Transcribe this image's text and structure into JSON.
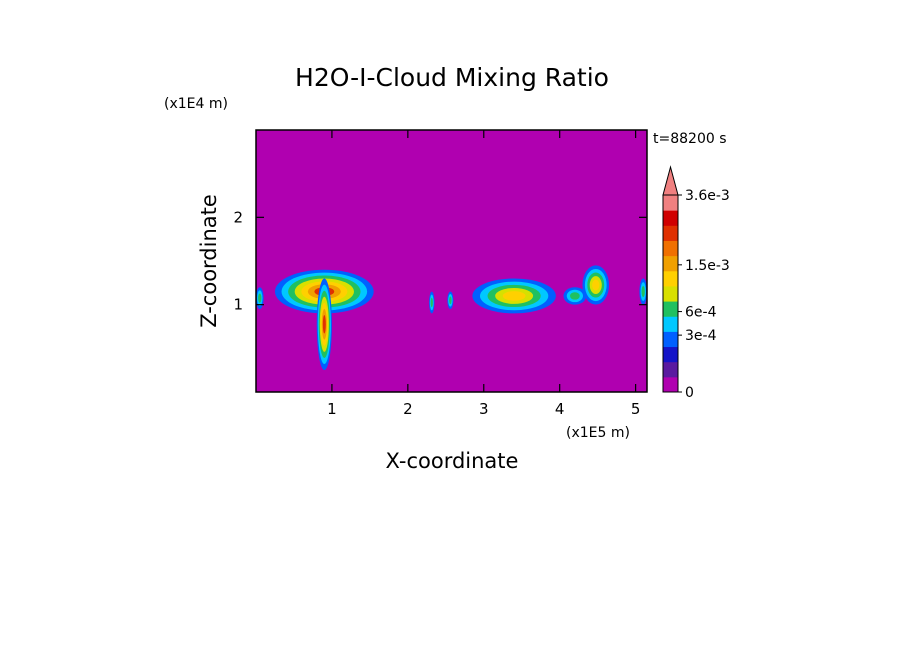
{
  "chart_data": {
    "type": "heatmap",
    "title": "H2O-I-Cloud Mixing Ratio",
    "xlabel": "X-coordinate",
    "ylabel": "Z-coordinate",
    "x_scale_label": "(x1E5 m)",
    "y_scale_label": "(x1E4 m)",
    "time_label": "t=88200 s",
    "xlim": [
      0,
      5.15
    ],
    "ylim": [
      0,
      3.0
    ],
    "x_ticks": [
      1,
      2,
      3,
      4,
      5
    ],
    "y_ticks": [
      1,
      2
    ],
    "grid": false,
    "background_color": "#B000B0",
    "colorbar": {
      "labels": [
        {
          "text": "3.6e-3",
          "value": 0.0036
        },
        {
          "text": "1.5e-3",
          "value": 0.0015
        },
        {
          "text": "6e-4",
          "value": 0.0006
        },
        {
          "text": "3e-4",
          "value": 0.0003
        },
        {
          "text": "0",
          "value": 0
        }
      ],
      "colors": [
        "#B000B0",
        "#5A1AA0",
        "#1414C8",
        "#0060FF",
        "#00C8FF",
        "#20C060",
        "#D8E000",
        "#FFD000",
        "#F0A000",
        "#F07000",
        "#E03000",
        "#D00000",
        "#F08080"
      ],
      "extend": "max"
    },
    "cloud_regions": [
      {
        "x": [
          0.0,
          0.1
        ],
        "z": [
          0.95,
          1.2
        ],
        "level": "low"
      },
      {
        "x": [
          0.25,
          1.55
        ],
        "z": [
          0.9,
          1.4
        ],
        "level": "high"
      },
      {
        "x": [
          0.8,
          1.0
        ],
        "z": [
          0.25,
          1.3
        ],
        "level": "high"
      },
      {
        "x": [
          2.28,
          2.35
        ],
        "z": [
          0.9,
          1.15
        ],
        "level": "low"
      },
      {
        "x": [
          2.52,
          2.6
        ],
        "z": [
          0.95,
          1.15
        ],
        "level": "low"
      },
      {
        "x": [
          2.85,
          3.95
        ],
        "z": [
          0.9,
          1.3
        ],
        "level": "medium"
      },
      {
        "x": [
          4.05,
          4.35
        ],
        "z": [
          1.0,
          1.2
        ],
        "level": "low"
      },
      {
        "x": [
          4.3,
          4.65
        ],
        "z": [
          1.0,
          1.45
        ],
        "level": "medium"
      },
      {
        "x": [
          5.05,
          5.15
        ],
        "z": [
          1.0,
          1.3
        ],
        "level": "low"
      }
    ]
  }
}
